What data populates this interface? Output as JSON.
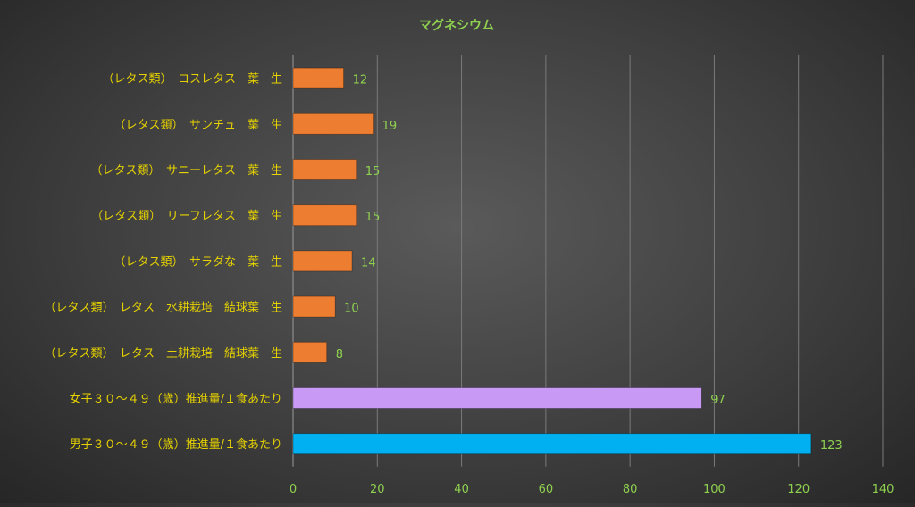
{
  "chart_data": {
    "type": "bar",
    "orientation": "horizontal",
    "title": "マグネシウム",
    "xlim": [
      0,
      140
    ],
    "x_ticks": [
      0,
      20,
      40,
      60,
      80,
      100,
      120,
      140
    ],
    "grid": true,
    "legend": "none",
    "categories": [
      "（レタス類）　コスレタス　葉　生",
      "（レタス類）　サンチュ　葉　生",
      "（レタス類）　サニーレタス　葉　生",
      "（レタス類）　リーフレタス　葉　生",
      "（レタス類）　サラダな　葉　生",
      "（レタス類）　レタス　水耕栽培　結球葉　生",
      "（レタス類）　レタス　土耕栽培　結球葉　生",
      "女子３０～４９（歳）推進量/１食あたり",
      "男子３０～４９（歳）推進量/１食あたり"
    ],
    "values": [
      12,
      19,
      15,
      15,
      14,
      10,
      8,
      97,
      123
    ],
    "colors": [
      "#ed7d31",
      "#ed7d31",
      "#ed7d31",
      "#ed7d31",
      "#ed7d31",
      "#ed7d31",
      "#ed7d31",
      "#c89af5",
      "#00b0f0"
    ],
    "text_colors": {
      "title": "#8fd14f",
      "category_labels": "#e6d200",
      "data_labels": "#8fd14f",
      "tick_labels": "#8fd14f"
    }
  }
}
